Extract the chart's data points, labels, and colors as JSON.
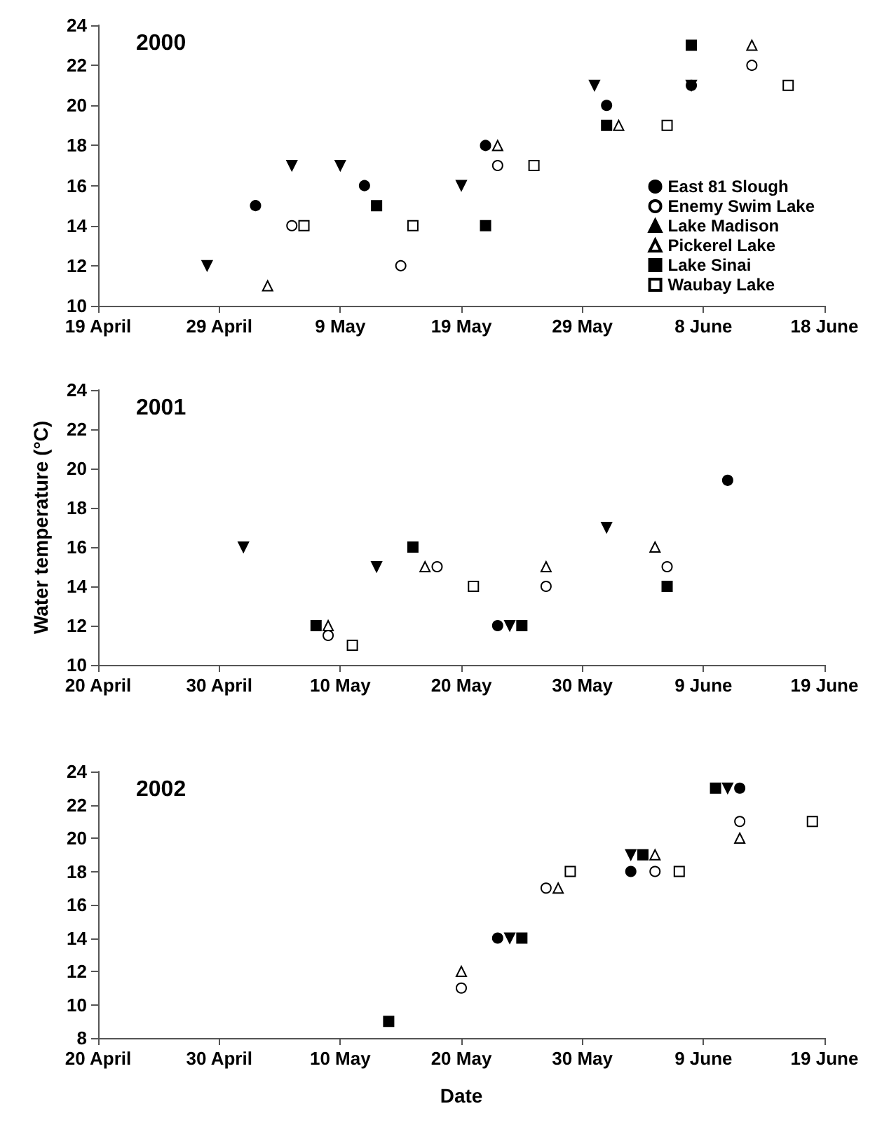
{
  "chart_data": [
    {
      "type": "scatter",
      "title": "2000",
      "xlim": [
        "2000-04-19",
        "2000-06-18"
      ],
      "xticks": [
        {
          "value": "2000-04-19",
          "label": "19 April"
        },
        {
          "value": "2000-04-29",
          "label": "29 April"
        },
        {
          "value": "2000-05-09",
          "label": "9 May"
        },
        {
          "value": "2000-05-19",
          "label": "19 May"
        },
        {
          "value": "2000-05-29",
          "label": "29 May"
        },
        {
          "value": "2000-06-08",
          "label": "8 June"
        },
        {
          "value": "2000-06-18",
          "label": "18 June"
        }
      ],
      "ylim": [
        10,
        24
      ],
      "yticks": [
        10,
        12,
        14,
        16,
        18,
        20,
        22,
        24
      ],
      "grid": false,
      "legend": "bottom right",
      "series": [
        {
          "name": "East 81 Slough",
          "color": "#000000",
          "marker": "circle",
          "x": [
            "2000-05-02",
            "2000-05-11",
            "2000-05-21",
            "2000-05-31",
            "2000-06-07"
          ],
          "values": [
            15,
            16,
            18,
            20,
            21
          ]
        },
        {
          "name": "Enemy Swim Lake",
          "color": "#ffffff",
          "marker": "circle",
          "x": [
            "2000-05-05",
            "2000-05-14",
            "2000-05-22",
            "2000-06-12"
          ],
          "values": [
            14,
            12,
            17,
            22
          ]
        },
        {
          "name": "Lake Madison",
          "color": "#000000",
          "marker": "triangle_down",
          "x": [
            "2000-04-28",
            "2000-05-05",
            "2000-05-09",
            "2000-05-19",
            "2000-05-30",
            "2000-06-07"
          ],
          "values": [
            12,
            17,
            17,
            16,
            21,
            21
          ]
        },
        {
          "name": "Pickerel Lake",
          "color": "#ffffff",
          "marker": "triangle",
          "x": [
            "2000-05-03",
            "2000-05-22",
            "2000-06-01",
            "2000-06-12"
          ],
          "values": [
            11,
            18,
            19,
            23
          ]
        },
        {
          "name": "Lake Sinai",
          "color": "#000000",
          "marker": "square",
          "x": [
            "2000-05-12",
            "2000-05-21",
            "2000-05-31",
            "2000-06-07"
          ],
          "values": [
            15,
            14,
            19,
            23
          ]
        },
        {
          "name": "Waubay Lake",
          "color": "#ffffff",
          "marker": "square",
          "x": [
            "2000-05-06",
            "2000-05-15",
            "2000-05-25",
            "2000-06-05",
            "2000-06-15"
          ],
          "values": [
            14,
            14,
            17,
            19,
            21
          ]
        }
      ]
    },
    {
      "type": "scatter",
      "title": "2001",
      "ylabel": "Water temperature (°C)",
      "xlim": [
        "2001-04-20",
        "2001-06-19"
      ],
      "xticks": [
        {
          "value": "2001-04-20",
          "label": "20 April"
        },
        {
          "value": "2001-04-30",
          "label": "30 April"
        },
        {
          "value": "2001-05-10",
          "label": "10 May"
        },
        {
          "value": "2001-05-20",
          "label": "20 May"
        },
        {
          "value": "2001-05-30",
          "label": "30 May"
        },
        {
          "value": "2001-06-09",
          "label": "9 June"
        },
        {
          "value": "2001-06-19",
          "label": "19 June"
        }
      ],
      "ylim": [
        10,
        24
      ],
      "yticks": [
        10,
        12,
        14,
        16,
        18,
        20,
        22,
        24
      ],
      "grid": false,
      "series": [
        {
          "color": "#000000",
          "marker": "circle",
          "x": [
            "2001-05-23",
            "2001-06-11"
          ],
          "values": [
            12,
            19.4
          ]
        },
        {
          "color": "#ffffff",
          "marker": "circle",
          "x": [
            "2001-05-09",
            "2001-05-18",
            "2001-05-27",
            "2001-06-06"
          ],
          "values": [
            11.5,
            15,
            14,
            15
          ]
        },
        {
          "color": "#000000",
          "marker": "triangle_down",
          "x": [
            "2001-05-02",
            "2001-05-13",
            "2001-05-24",
            "2001-06-01"
          ],
          "values": [
            16,
            15,
            12,
            17
          ]
        },
        {
          "color": "#ffffff",
          "marker": "triangle",
          "x": [
            "2001-05-09",
            "2001-05-17",
            "2001-05-27",
            "2001-06-05"
          ],
          "values": [
            12,
            15,
            15,
            16
          ]
        },
        {
          "color": "#000000",
          "marker": "square",
          "x": [
            "2001-05-08",
            "2001-05-16",
            "2001-05-25",
            "2001-06-06"
          ],
          "values": [
            12,
            16,
            12,
            14
          ]
        },
        {
          "color": "#ffffff",
          "marker": "square",
          "x": [
            "2001-05-11",
            "2001-05-21"
          ],
          "values": [
            11,
            14
          ]
        }
      ]
    },
    {
      "type": "scatter",
      "title": "2002",
      "xlabel": "Date",
      "xlim": [
        "2002-04-20",
        "2002-06-19"
      ],
      "xticks": [
        {
          "value": "2002-04-20",
          "label": "20 April"
        },
        {
          "value": "2002-04-30",
          "label": "30 April"
        },
        {
          "value": "2002-05-10",
          "label": "10 May"
        },
        {
          "value": "2002-05-20",
          "label": "20 May"
        },
        {
          "value": "2002-05-30",
          "label": "30 May"
        },
        {
          "value": "2002-06-09",
          "label": "9 June"
        },
        {
          "value": "2002-06-19",
          "label": "19 June"
        }
      ],
      "ylim": [
        8,
        24
      ],
      "yticks": [
        8,
        10,
        12,
        14,
        16,
        18,
        20,
        22,
        24
      ],
      "grid": false,
      "series": [
        {
          "color": "#000000",
          "marker": "circle",
          "x": [
            "2002-05-23",
            "2002-06-03",
            "2002-06-12"
          ],
          "values": [
            14,
            18,
            23
          ]
        },
        {
          "color": "#ffffff",
          "marker": "circle",
          "x": [
            "2002-05-20",
            "2002-05-27",
            "2002-06-05",
            "2002-06-12"
          ],
          "values": [
            11,
            17,
            18,
            21
          ]
        },
        {
          "color": "#000000",
          "marker": "triangle_down",
          "x": [
            "2002-05-24",
            "2002-06-03",
            "2002-06-11"
          ],
          "values": [
            14,
            19,
            23
          ]
        },
        {
          "color": "#ffffff",
          "marker": "triangle",
          "x": [
            "2002-05-20",
            "2002-05-28",
            "2002-06-05",
            "2002-06-12"
          ],
          "values": [
            12,
            17,
            19,
            20
          ]
        },
        {
          "color": "#000000",
          "marker": "square",
          "x": [
            "2002-05-14",
            "2002-05-25",
            "2002-06-04",
            "2002-06-10"
          ],
          "values": [
            9,
            14,
            19,
            23
          ]
        },
        {
          "color": "#ffffff",
          "marker": "square",
          "x": [
            "2002-05-29",
            "2002-06-07",
            "2002-06-18"
          ],
          "values": [
            18,
            18,
            21
          ]
        }
      ]
    }
  ]
}
